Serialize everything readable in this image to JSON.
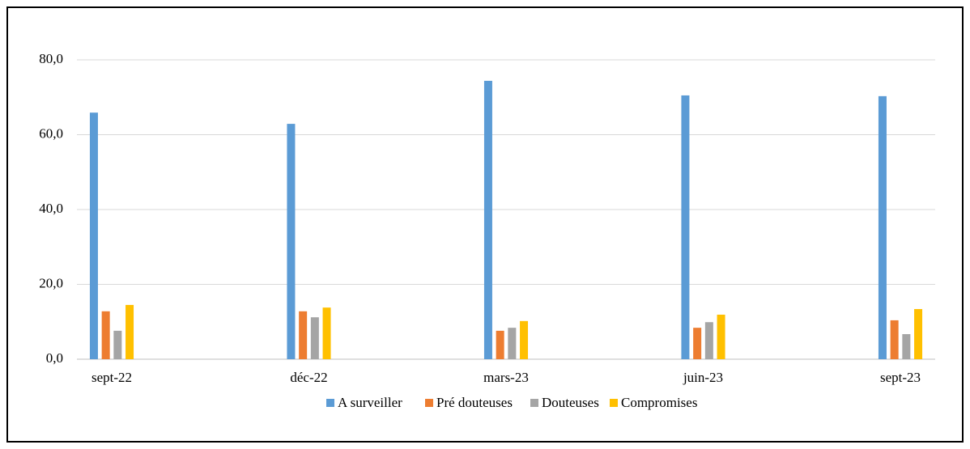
{
  "chart_data": {
    "type": "bar",
    "categories": [
      "sept-22",
      "déc-22",
      "mars-23",
      "juin-23",
      "sept-23"
    ],
    "series": [
      {
        "name": "A surveiller",
        "color": "#5b9bd5",
        "values": [
          65.9,
          62.9,
          74.4,
          70.5,
          70.3
        ]
      },
      {
        "name": "Pré douteuses",
        "color": "#ed7d31",
        "values": [
          12.8,
          12.8,
          7.6,
          8.4,
          10.4
        ]
      },
      {
        "name": "Douteuses",
        "color": "#a5a5a5",
        "values": [
          7.6,
          11.2,
          8.4,
          9.9,
          6.7
        ]
      },
      {
        "name": "Compromises",
        "color": "#ffc000",
        "values": [
          14.5,
          13.8,
          10.2,
          11.9,
          13.4
        ]
      }
    ],
    "ylim": [
      0,
      80
    ],
    "yticks": [
      {
        "value": 0,
        "label": "0,0"
      },
      {
        "value": 20,
        "label": "20,0"
      },
      {
        "value": 40,
        "label": "40,0"
      },
      {
        "value": 60,
        "label": "60,0"
      },
      {
        "value": 80,
        "label": "80,0"
      }
    ],
    "grid": true,
    "legend": "bottom"
  }
}
